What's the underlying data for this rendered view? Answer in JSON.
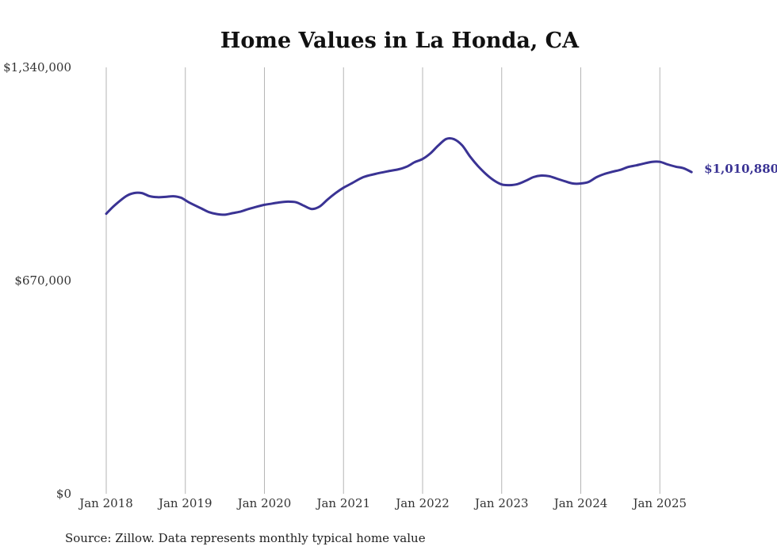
{
  "chart_data": {
    "type": "line",
    "title": "Home Values in La Honda, CA",
    "xlabel": "",
    "ylabel": "",
    "ylim": [
      0,
      1340000
    ],
    "y_ticks": [
      {
        "value": 0,
        "label": "$0"
      },
      {
        "value": 670000,
        "label": "$670,000"
      },
      {
        "value": 1340000,
        "label": "$1,340,000"
      }
    ],
    "x_ticks": [
      {
        "value": 2018.0,
        "label": "Jan 2018"
      },
      {
        "value": 2019.0,
        "label": "Jan 2019"
      },
      {
        "value": 2020.0,
        "label": "Jan 2020"
      },
      {
        "value": 2021.0,
        "label": "Jan 2021"
      },
      {
        "value": 2022.0,
        "label": "Jan 2022"
      },
      {
        "value": 2023.0,
        "label": "Jan 2023"
      },
      {
        "value": 2024.0,
        "label": "Jan 2024"
      },
      {
        "value": 2025.0,
        "label": "Jan 2025"
      }
    ],
    "xlim": [
      2017.55,
      2026.0
    ],
    "grid": "vertical",
    "line_color": "#3a3394",
    "series": [
      {
        "x": [
          2018.0,
          2018.1,
          2018.25,
          2018.35,
          2018.45,
          2018.55,
          2018.65,
          2018.75,
          2018.85,
          2018.95,
          2019.05,
          2019.2,
          2019.3,
          2019.4,
          2019.5,
          2019.6,
          2019.7,
          2019.8,
          2019.9,
          2020.0,
          2020.1,
          2020.2,
          2020.3,
          2020.4,
          2020.5,
          2020.6,
          2020.7,
          2020.8,
          2020.9,
          2021.0,
          2021.1,
          2021.25,
          2021.4,
          2021.55,
          2021.7,
          2021.8,
          2021.9,
          2022.0,
          2022.1,
          2022.2,
          2022.3,
          2022.4,
          2022.5,
          2022.6,
          2022.7,
          2022.8,
          2022.9,
          2023.0,
          2023.1,
          2023.2,
          2023.3,
          2023.4,
          2023.5,
          2023.6,
          2023.7,
          2023.8,
          2023.9,
          2024.0,
          2024.1,
          2024.2,
          2024.3,
          2024.4,
          2024.5,
          2024.6,
          2024.7,
          2024.8,
          2024.9,
          2025.0,
          2025.1,
          2025.2,
          2025.3,
          2025.4
        ],
        "y": [
          880000,
          905000,
          935000,
          945000,
          945000,
          935000,
          932000,
          933000,
          935000,
          930000,
          915000,
          897000,
          885000,
          879000,
          877000,
          882000,
          887000,
          895000,
          902000,
          908000,
          912000,
          916000,
          918000,
          916000,
          905000,
          895000,
          903000,
          925000,
          945000,
          962000,
          975000,
          995000,
          1005000,
          1013000,
          1020000,
          1028000,
          1042000,
          1052000,
          1070000,
          1095000,
          1115000,
          1114000,
          1095000,
          1060000,
          1030000,
          1005000,
          985000,
          972000,
          970000,
          973000,
          983000,
          995000,
          1000000,
          998000,
          990000,
          982000,
          975000,
          975000,
          980000,
          995000,
          1005000,
          1012000,
          1018000,
          1027000,
          1032000,
          1038000,
          1043000,
          1043000,
          1035000,
          1028000,
          1023000,
          1010880
        ]
      }
    ],
    "end_label": "$1,010,880",
    "source": "Source: Zillow. Data represents monthly typical home value"
  }
}
